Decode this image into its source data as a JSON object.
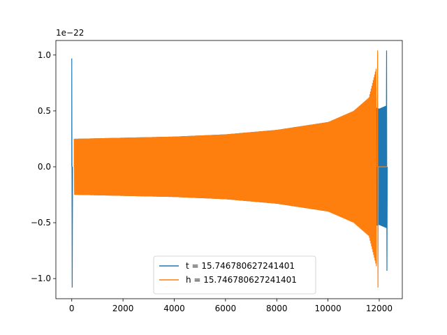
{
  "chart_data": {
    "type": "line",
    "title": "",
    "xlabel": "",
    "ylabel": "",
    "offset_text": "1e−22",
    "x_ticks": [
      0,
      2000,
      4000,
      6000,
      8000,
      10000,
      12000
    ],
    "x_tick_labels": [
      "0",
      "2000",
      "4000",
      "6000",
      "8000",
      "10000",
      "12000"
    ],
    "y_ticks": [
      -1.0,
      -0.5,
      0.0,
      0.5,
      1.0
    ],
    "y_tick_labels": [
      "−1.0",
      "−0.5",
      "0.0",
      "0.5",
      "1.0"
    ],
    "xlim": [
      -620,
      12900
    ],
    "ylim": [
      -1.18,
      1.13
    ],
    "y_scale_exponent": -22,
    "legend_position": "lower center",
    "grid": false,
    "series": [
      {
        "name": "t = 15.746780627241401",
        "color": "#1f77b4",
        "x_range": [
          0,
          12300
        ],
        "initial_spike": {
          "x": 0,
          "max": 0.97,
          "min": -1.08
        },
        "envelope": [
          {
            "x": 100,
            "amp": 0.25
          },
          {
            "x": 2000,
            "amp": 0.26
          },
          {
            "x": 4000,
            "amp": 0.27
          },
          {
            "x": 6000,
            "amp": 0.29
          },
          {
            "x": 8000,
            "amp": 0.33
          },
          {
            "x": 10000,
            "amp": 0.4
          },
          {
            "x": 11000,
            "amp": 0.47
          },
          {
            "x": 11600,
            "amp": 0.55
          },
          {
            "x": 12000,
            "amp": 0.52
          },
          {
            "x": 12300,
            "amp": 0.55
          }
        ],
        "final_spike": {
          "x": 12300,
          "max": 1.04,
          "min": -0.93
        }
      },
      {
        "name": "h = 15.746780627241401",
        "color": "#ff7f0e",
        "x_range": [
          0,
          12300
        ],
        "envelope": [
          {
            "x": 100,
            "amp": 0.25
          },
          {
            "x": 2000,
            "amp": 0.26
          },
          {
            "x": 4000,
            "amp": 0.27
          },
          {
            "x": 6000,
            "amp": 0.29
          },
          {
            "x": 8000,
            "amp": 0.33
          },
          {
            "x": 10000,
            "amp": 0.4
          },
          {
            "x": 11000,
            "amp": 0.5
          },
          {
            "x": 11600,
            "amp": 0.62
          },
          {
            "x": 11900,
            "amp": 0.9
          }
        ],
        "final_spike": {
          "x": 11950,
          "max": 1.04,
          "min": -1.08
        },
        "flat_after": {
          "x_start": 11960,
          "x_end": 12300,
          "value": 0.0
        }
      }
    ]
  }
}
